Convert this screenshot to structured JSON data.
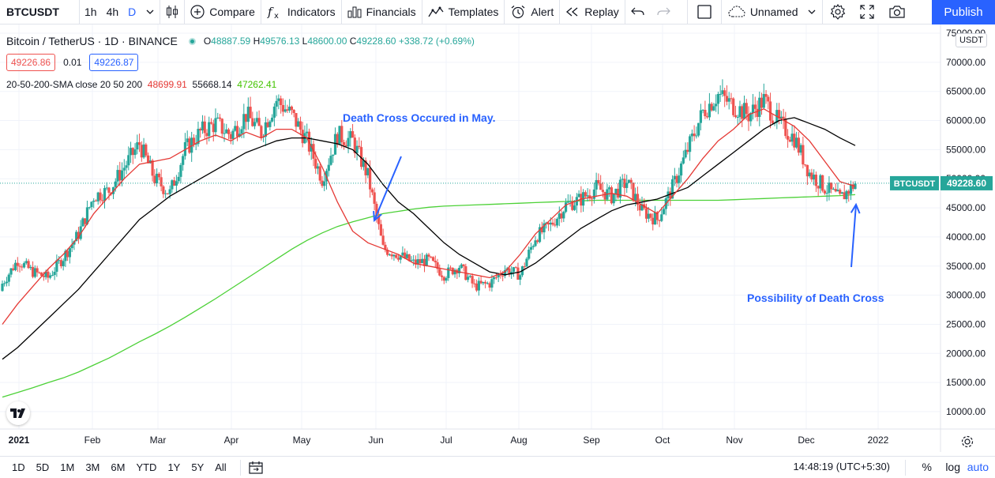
{
  "toolbar": {
    "symbol": "BTCUSDT",
    "timeframes": [
      "1h",
      "4h",
      "D"
    ],
    "active_timeframe": "D",
    "compare_label": "Compare",
    "indicators_label": "Indicators",
    "financials_label": "Financials",
    "templates_label": "Templates",
    "alert_label": "Alert",
    "replay_label": "Replay",
    "layout_name": "Unnamed",
    "publish_label": "Publish"
  },
  "legend": {
    "title": "Bitcoin / TetherUS · 1D · BINANCE",
    "open_key": "O",
    "open": "48887.59",
    "high_key": "H",
    "high": "49576.13",
    "low_key": "L",
    "low": "48600.00",
    "close_key": "C",
    "close": "49228.60",
    "change": "+338.72 (+0.69%)",
    "sell_price": "49226.86",
    "spread": "0.01",
    "buy_price": "49226.87",
    "sma_label": "20-50-200-SMA close 20 50 200",
    "sma20": "48699.91",
    "sma50": "55668.14",
    "sma200": "47262.41"
  },
  "currency": "USDT",
  "price_tag": {
    "symbol": "BTCUSDT",
    "price": "49228.60"
  },
  "annotations": {
    "may": "Death Cross Occured in May.",
    "dec": "Possibility of Death Cross"
  },
  "bottom": {
    "ranges": [
      "1D",
      "5D",
      "1M",
      "3M",
      "6M",
      "YTD",
      "1Y",
      "5Y",
      "All"
    ],
    "clock": "14:48:19 (UTC+5:30)",
    "percent_label": "%",
    "log_label": "log",
    "auto_label": "auto"
  },
  "colors": {
    "up": "#26a69a",
    "down": "#ef5350",
    "sma20": "#e53935",
    "sma50": "#000000",
    "sma200": "#4cd137",
    "accent": "#2962ff"
  },
  "chart_data": {
    "type": "candlestick",
    "y_axis_ticks": [
      "75000.00",
      "70000.00",
      "65000.00",
      "60000.00",
      "55000.00",
      "50000.00",
      "45000.00",
      "40000.00",
      "35000.00",
      "30000.00",
      "25000.00",
      "20000.00",
      "15000.00",
      "10000.00"
    ],
    "ylim": [
      5000,
      76000
    ],
    "x_axis_labels": [
      "2021",
      "Feb",
      "Mar",
      "Apr",
      "May",
      "Jun",
      "Jul",
      "Aug",
      "Sep",
      "Oct",
      "Nov",
      "Dec",
      "2022"
    ],
    "weekly_close": [
      32000,
      36000,
      34000,
      33000,
      36500,
      40500,
      47000,
      48000,
      52000,
      56000,
      50000,
      47500,
      55000,
      58000,
      59500,
      57500,
      61000,
      58000,
      63500,
      61000,
      56500,
      50000,
      57500,
      56500,
      50500,
      38000,
      37000,
      35500,
      36000,
      33500,
      35000,
      31500,
      32000,
      34500,
      33500,
      40000,
      42000,
      45500,
      46500,
      48500,
      47000,
      49500,
      44500,
      43000,
      48500,
      55000,
      61500,
      64500,
      62500,
      61000,
      63500,
      59500,
      57000,
      51000,
      48500,
      46500,
      49200
    ],
    "sma20_weekly": [
      25000,
      28500,
      31500,
      34500,
      37000,
      40000,
      44000,
      47000,
      50000,
      52500,
      53000,
      53500,
      55000,
      56500,
      57500,
      56500,
      58000,
      57000,
      58500,
      58500,
      57000,
      52000,
      46000,
      41000,
      39000,
      38000,
      37000,
      35500,
      35000,
      34500,
      34000,
      33500,
      33000,
      34000,
      37000,
      40500,
      43000,
      45500,
      46500,
      47000,
      47500,
      47000,
      45500,
      44000,
      47000,
      50000,
      53500,
      56500,
      58500,
      61000,
      62000,
      60500,
      59000,
      56500,
      53000,
      49500,
      48700
    ],
    "sma50_weekly": [
      19000,
      21000,
      23500,
      26000,
      28500,
      31000,
      34000,
      37000,
      40000,
      43000,
      45000,
      47000,
      48500,
      50000,
      51500,
      53000,
      54500,
      55500,
      56500,
      57000,
      57000,
      56500,
      56000,
      55000,
      52500,
      49000,
      46000,
      44000,
      41500,
      39000,
      37000,
      35500,
      34000,
      33500,
      34000,
      35500,
      37500,
      39500,
      41500,
      43000,
      44500,
      45500,
      46000,
      46500,
      47500,
      48500,
      50500,
      52500,
      54500,
      56500,
      58500,
      60000,
      60500,
      59500,
      58500,
      57000,
      55700
    ],
    "sma200_weekly": [
      12500,
      13300,
      14100,
      15000,
      15800,
      16800,
      18000,
      19200,
      20600,
      22000,
      23300,
      24700,
      26200,
      27800,
      29400,
      31100,
      32800,
      34500,
      36200,
      37900,
      39400,
      40700,
      41800,
      42600,
      43300,
      44000,
      44400,
      44800,
      45100,
      45300,
      45400,
      45500,
      45600,
      45700,
      45800,
      45900,
      46000,
      46100,
      46200,
      46300,
      46300,
      46300,
      46300,
      46300,
      46300,
      46300,
      46300,
      46300,
      46400,
      46500,
      46600,
      46700,
      46800,
      46900,
      47000,
      47100,
      47262
    ]
  }
}
